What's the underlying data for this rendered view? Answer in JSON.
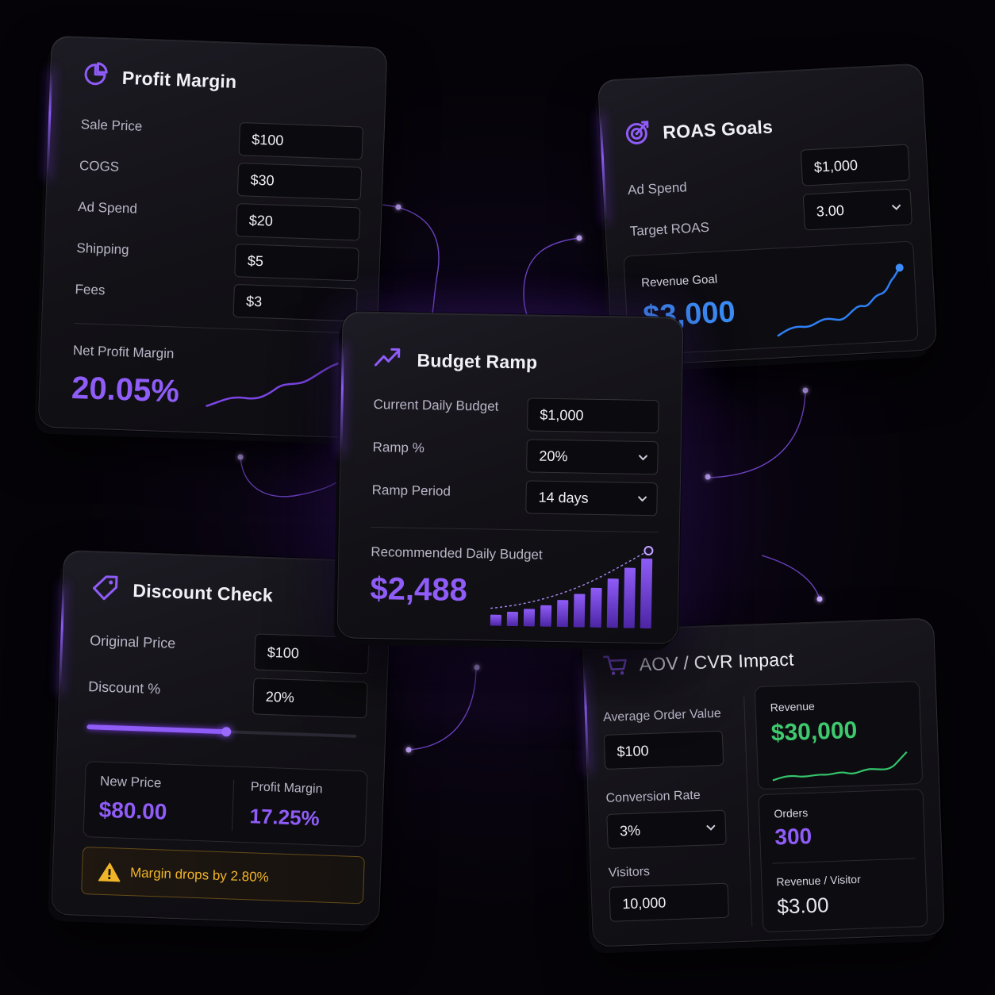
{
  "colors": {
    "accent_purple": "#8f5cf7",
    "accent_blue": "#3b8cf6",
    "accent_green": "#3ec96e",
    "warning_amber": "#f0b429"
  },
  "profit_margin": {
    "title": "Profit Margin",
    "icon": "pie-chart-icon",
    "fields": [
      {
        "label": "Sale Price",
        "value": "$100"
      },
      {
        "label": "COGS",
        "value": "$30"
      },
      {
        "label": "Ad Spend",
        "value": "$20"
      },
      {
        "label": "Shipping",
        "value": "$5"
      },
      {
        "label": "Fees",
        "value": "$3"
      }
    ],
    "result_label": "Net Profit Margin",
    "result_value": "20.05%"
  },
  "roas_goals": {
    "title": "ROAS Goals",
    "icon": "target-icon",
    "ad_spend_label": "Ad Spend",
    "ad_spend_value": "$1,000",
    "target_roas_label": "Target ROAS",
    "target_roas_value": "3.00",
    "result_label": "Revenue Goal",
    "result_value": "$3,000"
  },
  "budget_ramp": {
    "title": "Budget Ramp",
    "icon": "trending-up-icon",
    "current_budget_label": "Current Daily Budget",
    "current_budget_value": "$1,000",
    "ramp_pct_label": "Ramp %",
    "ramp_pct_value": "20%",
    "ramp_period_label": "Ramp Period",
    "ramp_period_value": "14 days",
    "result_label": "Recommended Daily Budget",
    "result_value": "$2,488"
  },
  "discount_check": {
    "title": "Discount Check",
    "icon": "tag-icon",
    "original_price_label": "Original Price",
    "original_price_value": "$100",
    "discount_label": "Discount %",
    "discount_value": "20%",
    "slider_level": 0.4,
    "new_price_label": "New Price",
    "new_price_value": "$80.00",
    "profit_margin_label": "Profit Margin",
    "profit_margin_value": "17.25%",
    "warning_icon": "warning-triangle-icon",
    "warning_text": "Margin drops by 2.80%"
  },
  "aov_cvr": {
    "title": "AOV / CVR Impact",
    "icon": "shopping-cart-icon",
    "aov_label": "Average Order Value",
    "aov_value": "$100",
    "cvr_label": "Conversion Rate",
    "cvr_value": "3%",
    "visitors_label": "Visitors",
    "visitors_value": "10,000",
    "revenue_label": "Revenue",
    "revenue_value": "$30,000",
    "orders_label": "Orders",
    "orders_value": "300",
    "rpv_label": "Revenue / Visitor",
    "rpv_value": "$3.00"
  }
}
